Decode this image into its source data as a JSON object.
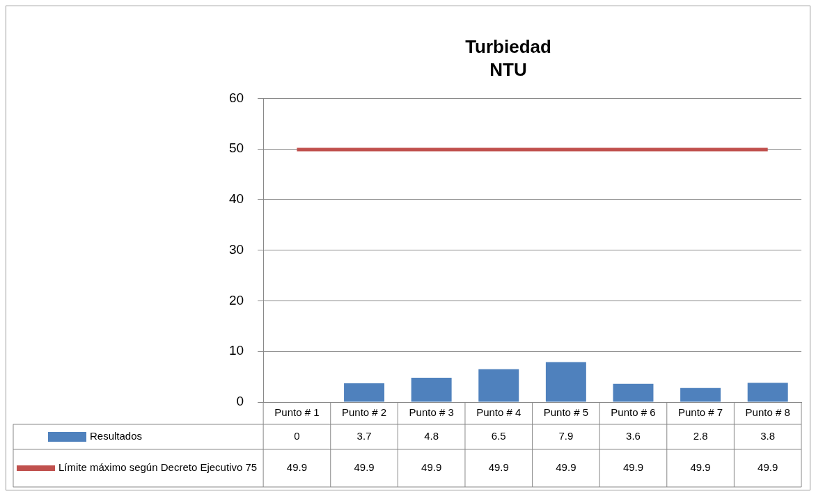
{
  "chart_data": {
    "type": "bar",
    "title": "Turbiedad",
    "subtitle": "NTU",
    "categories": [
      "Punto # 1",
      "Punto # 2",
      "Punto # 3",
      "Punto # 4",
      "Punto # 5",
      "Punto # 6",
      "Punto # 7",
      "Punto # 8"
    ],
    "series": [
      {
        "name": "Resultados",
        "type": "bar",
        "color": "#4f81bd",
        "values": [
          0,
          3.7,
          4.8,
          6.5,
          7.9,
          3.6,
          2.8,
          3.8
        ]
      },
      {
        "name": "Límite máximo según Decreto Ejecutivo 75",
        "type": "line",
        "color": "#c0504d",
        "values": [
          49.9,
          49.9,
          49.9,
          49.9,
          49.9,
          49.9,
          49.9,
          49.9
        ]
      }
    ],
    "ylim": [
      0,
      60
    ],
    "yticks": [
      0,
      10,
      20,
      30,
      40,
      50,
      60
    ],
    "grid": "y",
    "legend": "bottom",
    "data_labels": true,
    "marker": "none",
    "line_style": "solid"
  }
}
